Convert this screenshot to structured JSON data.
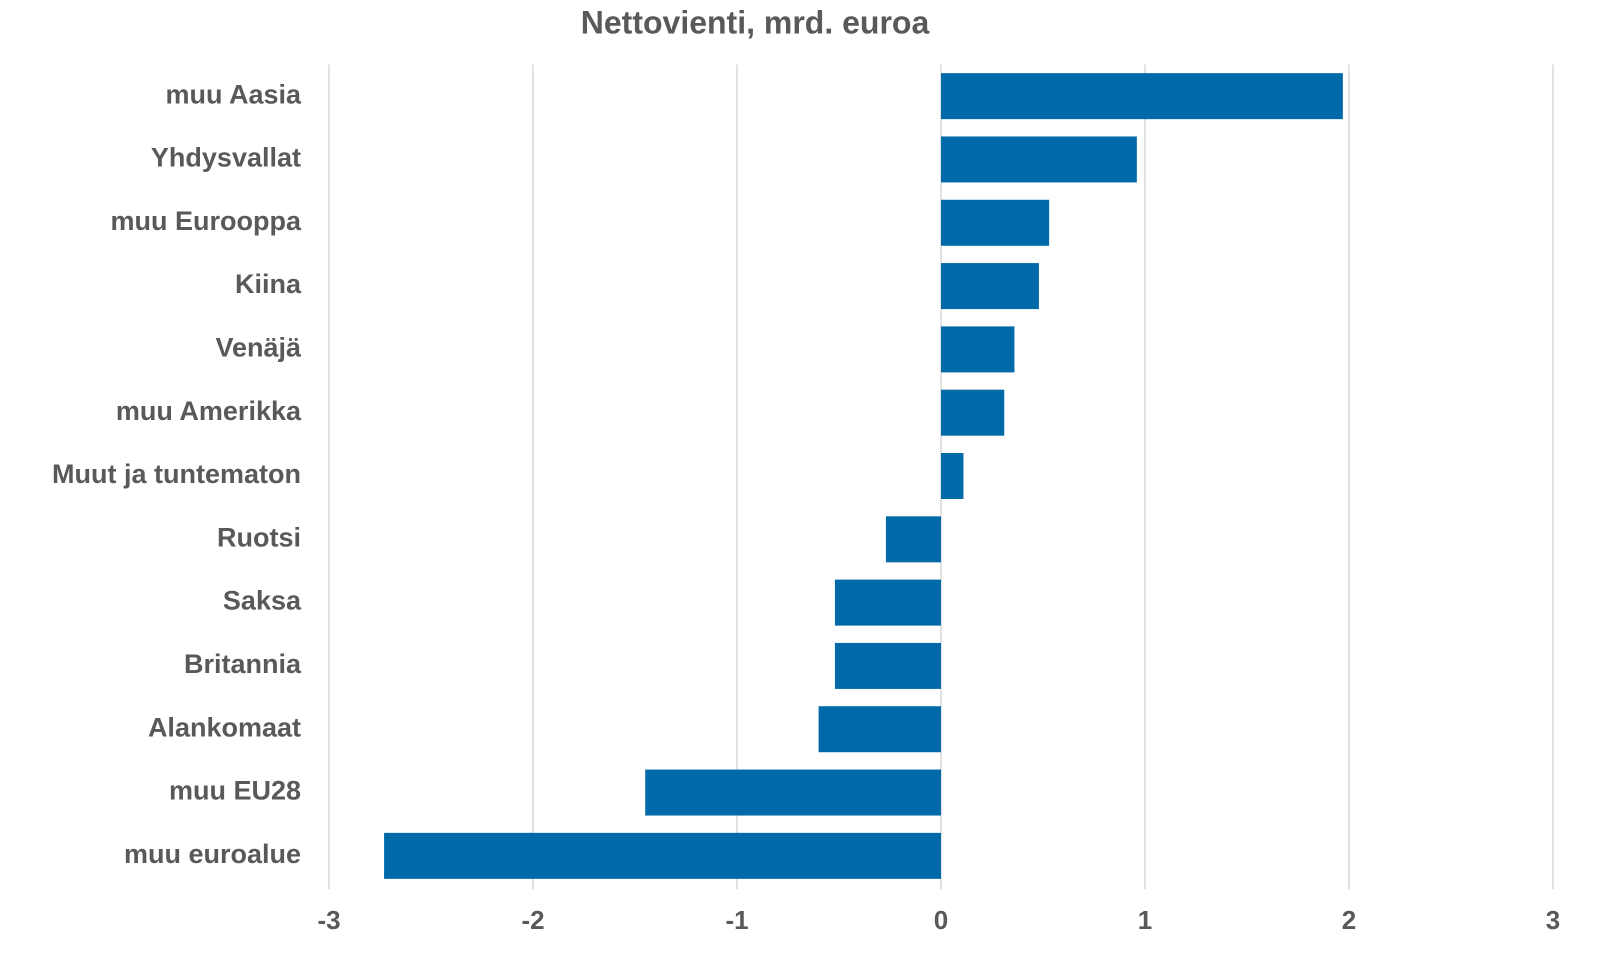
{
  "chart_data": {
    "type": "hbar",
    "title": "Nettovienti, mrd. euroa",
    "categories": [
      "muu Aasia",
      "Yhdysvallat",
      "muu Eurooppa",
      "Kiina",
      "Venäjä",
      "muu Amerikka",
      "Muut ja tuntematon",
      "Ruotsi",
      "Saksa",
      "Britannia",
      "Alankomaat",
      "muu EU28",
      "muu euroalue"
    ],
    "values": [
      1.97,
      0.96,
      0.53,
      0.48,
      0.36,
      0.31,
      0.11,
      -0.27,
      -0.52,
      -0.52,
      -0.6,
      -1.45,
      -2.73
    ],
    "color": "#006aa9",
    "xlim": [
      -3,
      3
    ],
    "xticks": [
      -3,
      -2,
      -1,
      0,
      1,
      2,
      3
    ],
    "grid": true
  }
}
